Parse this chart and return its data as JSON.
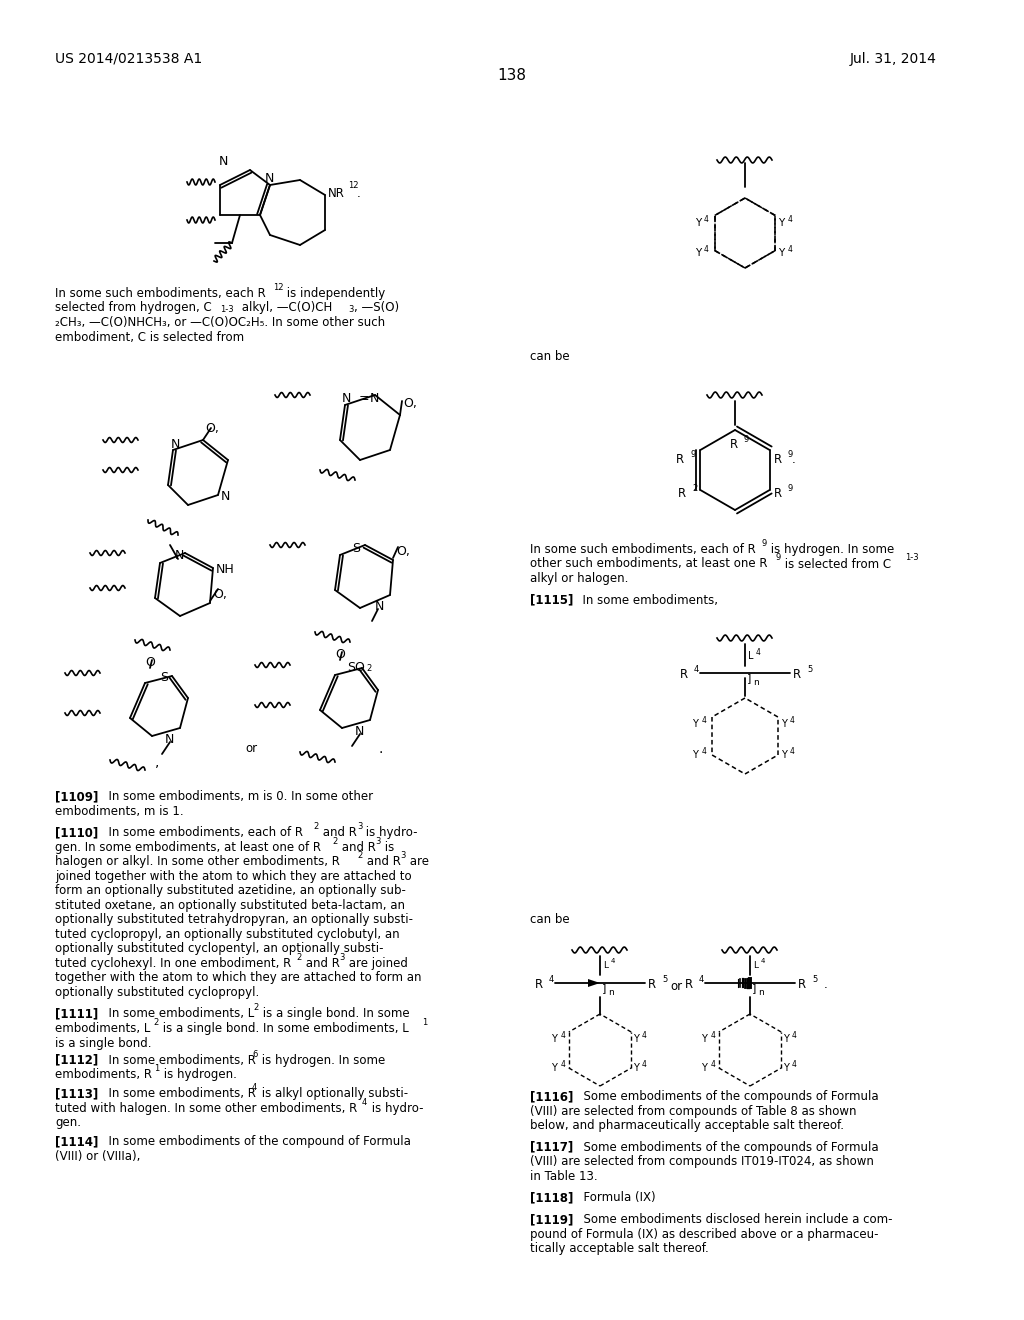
{
  "bg_color": "#ffffff",
  "header_left": "US 2014/0213538 A1",
  "header_right": "Jul. 31, 2014",
  "page_number": "138",
  "figsize": [
    10.24,
    13.2
  ],
  "dpi": 100
}
